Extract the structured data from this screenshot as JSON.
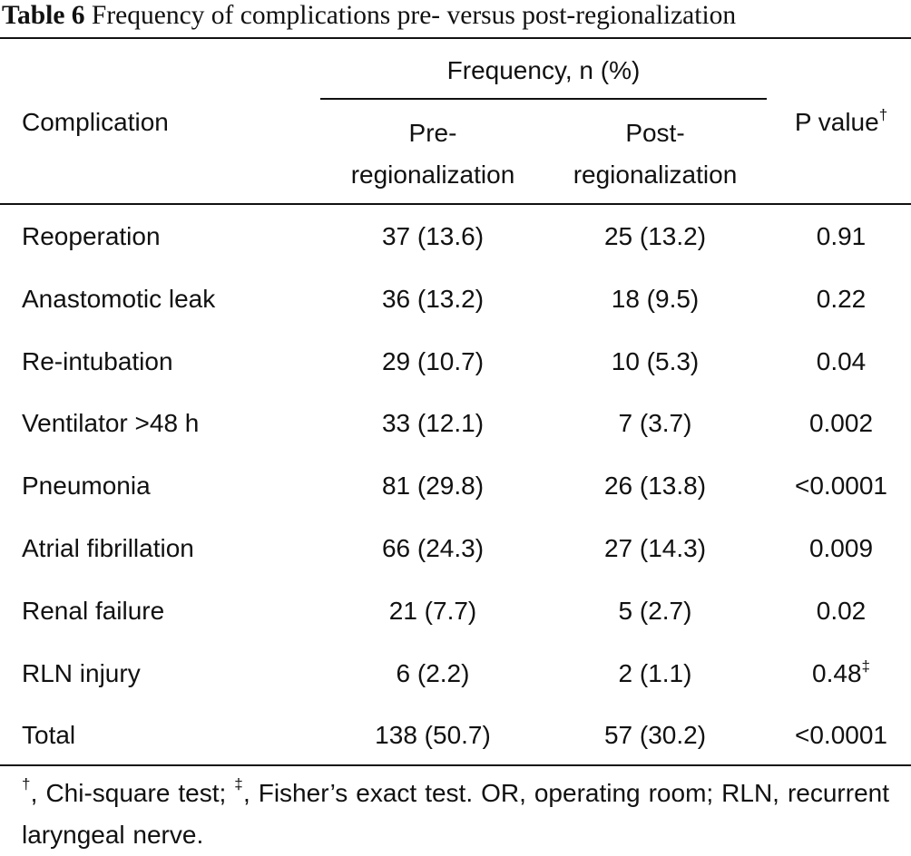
{
  "caption": {
    "label": "Table 6",
    "title": "Frequency of complications pre- versus post-regionalization"
  },
  "header": {
    "complication": "Complication",
    "frequency_group": "Frequency, n (%)",
    "pre": "Pre-\nregionalization",
    "post": "Post-\nregionalization",
    "p_value": "P value",
    "p_value_mark": "†"
  },
  "rows": [
    {
      "complication": "Reoperation",
      "pre": "37 (13.6)",
      "post": "25 (13.2)",
      "p": "0.91",
      "mark": ""
    },
    {
      "complication": "Anastomotic leak",
      "pre": "36 (13.2)",
      "post": "18 (9.5)",
      "p": "0.22",
      "mark": ""
    },
    {
      "complication": "Re-intubation",
      "pre": "29 (10.7)",
      "post": "10 (5.3)",
      "p": "0.04",
      "mark": ""
    },
    {
      "complication": "Ventilator >48 h",
      "pre": "33 (12.1)",
      "post": "7 (3.7)",
      "p": "0.002",
      "mark": ""
    },
    {
      "complication": "Pneumonia",
      "pre": "81 (29.8)",
      "post": "26 (13.8)",
      "p": "<0.0001",
      "mark": ""
    },
    {
      "complication": "Atrial fibrillation",
      "pre": "66 (24.3)",
      "post": "27 (14.3)",
      "p": "0.009",
      "mark": ""
    },
    {
      "complication": "Renal failure",
      "pre": "21 (7.7)",
      "post": "5 (2.7)",
      "p": "0.02",
      "mark": ""
    },
    {
      "complication": "RLN injury",
      "pre": "6 (2.2)",
      "post": "2 (1.1)",
      "p": "0.48",
      "mark": "‡"
    },
    {
      "complication": "Total",
      "pre": "138 (50.7)",
      "post": "57 (30.2)",
      "p": "<0.0001",
      "mark": ""
    }
  ],
  "footnote": {
    "dagger": "†",
    "dagger_text": ", Chi-square test; ",
    "ddagger": "‡",
    "ddagger_text": ", Fisher’s exact test. OR, operating room; RLN, recurrent laryngeal nerve."
  }
}
